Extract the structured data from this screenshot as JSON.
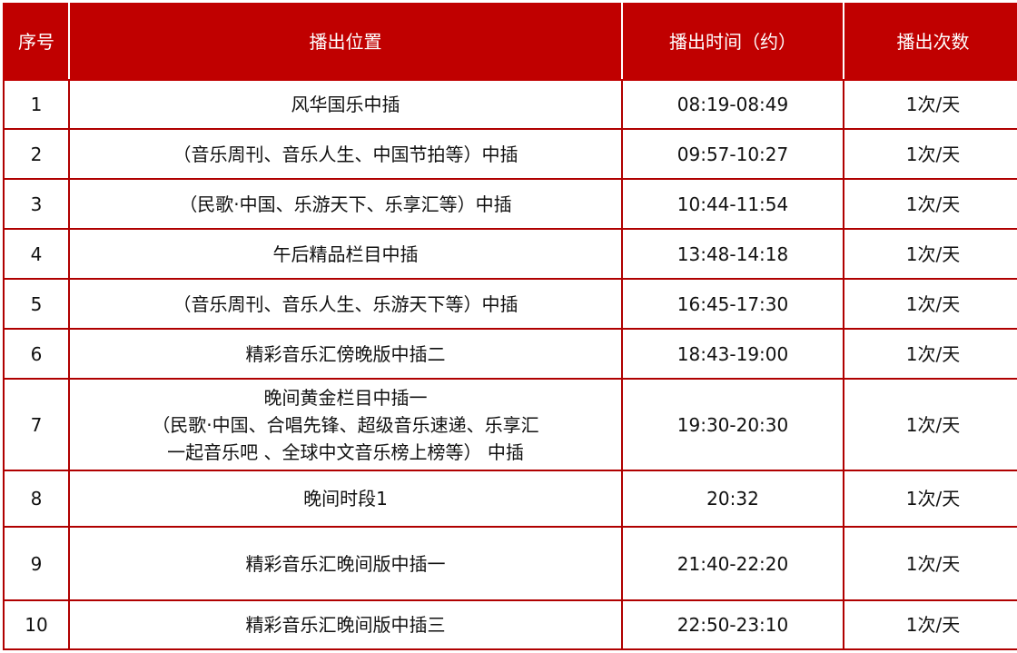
{
  "colors": {
    "header_bg": "#c00000",
    "border": "#b00000"
  },
  "headers": [
    "序号",
    "播出位置",
    "播出时间（约）",
    "播出次数"
  ],
  "rows": [
    {
      "no": "1",
      "position": [
        "风华国乐中插"
      ],
      "time": "08:19-08:49",
      "count": "1次/天"
    },
    {
      "no": "2",
      "position": [
        "（音乐周刊、音乐人生、中国节拍等）中插"
      ],
      "time": "09:57-10:27",
      "count": "1次/天"
    },
    {
      "no": "3",
      "position": [
        "（民歌·中国、乐游天下、乐享汇等）中插"
      ],
      "time": "10:44-11:54",
      "count": "1次/天"
    },
    {
      "no": "4",
      "position": [
        "午后精品栏目中插"
      ],
      "time": "13:48-14:18",
      "count": "1次/天"
    },
    {
      "no": "5",
      "position": [
        "（音乐周刊、音乐人生、乐游天下等）中插"
      ],
      "time": "16:45-17:30",
      "count": "1次/天"
    },
    {
      "no": "6",
      "position": [
        "精彩音乐汇傍晚版中插二"
      ],
      "time": "18:43-19:00",
      "count": "1次/天"
    },
    {
      "no": "7",
      "position": [
        "晚间黄金栏目中插一",
        "（民歌·中国、合唱先锋、超级音乐速递、乐享汇",
        "一起音乐吧 、全球中文音乐榜上榜等） 中插"
      ],
      "time": "19:30-20:30",
      "count": "1次/天"
    },
    {
      "no": "8",
      "position": [
        "晚间时段1"
      ],
      "time": "20:32",
      "count": "1次/天"
    },
    {
      "no": "9",
      "position": [
        "精彩音乐汇晚间版中插一"
      ],
      "time": "21:40-22:20",
      "count": "1次/天"
    },
    {
      "no": "10",
      "position": [
        "精彩音乐汇晚间版中插三"
      ],
      "time": "22:50-23:10",
      "count": "1次/天"
    }
  ]
}
